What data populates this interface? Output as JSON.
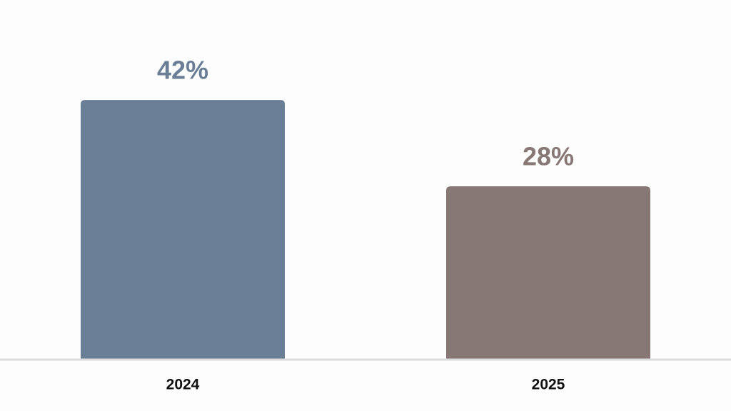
{
  "chart_data": {
    "type": "bar",
    "categories": [
      "2024",
      "2025"
    ],
    "values": [
      42,
      28
    ],
    "value_labels": [
      "42%",
      "28%"
    ],
    "colors": [
      "#6a7f96",
      "#877775"
    ]
  }
}
